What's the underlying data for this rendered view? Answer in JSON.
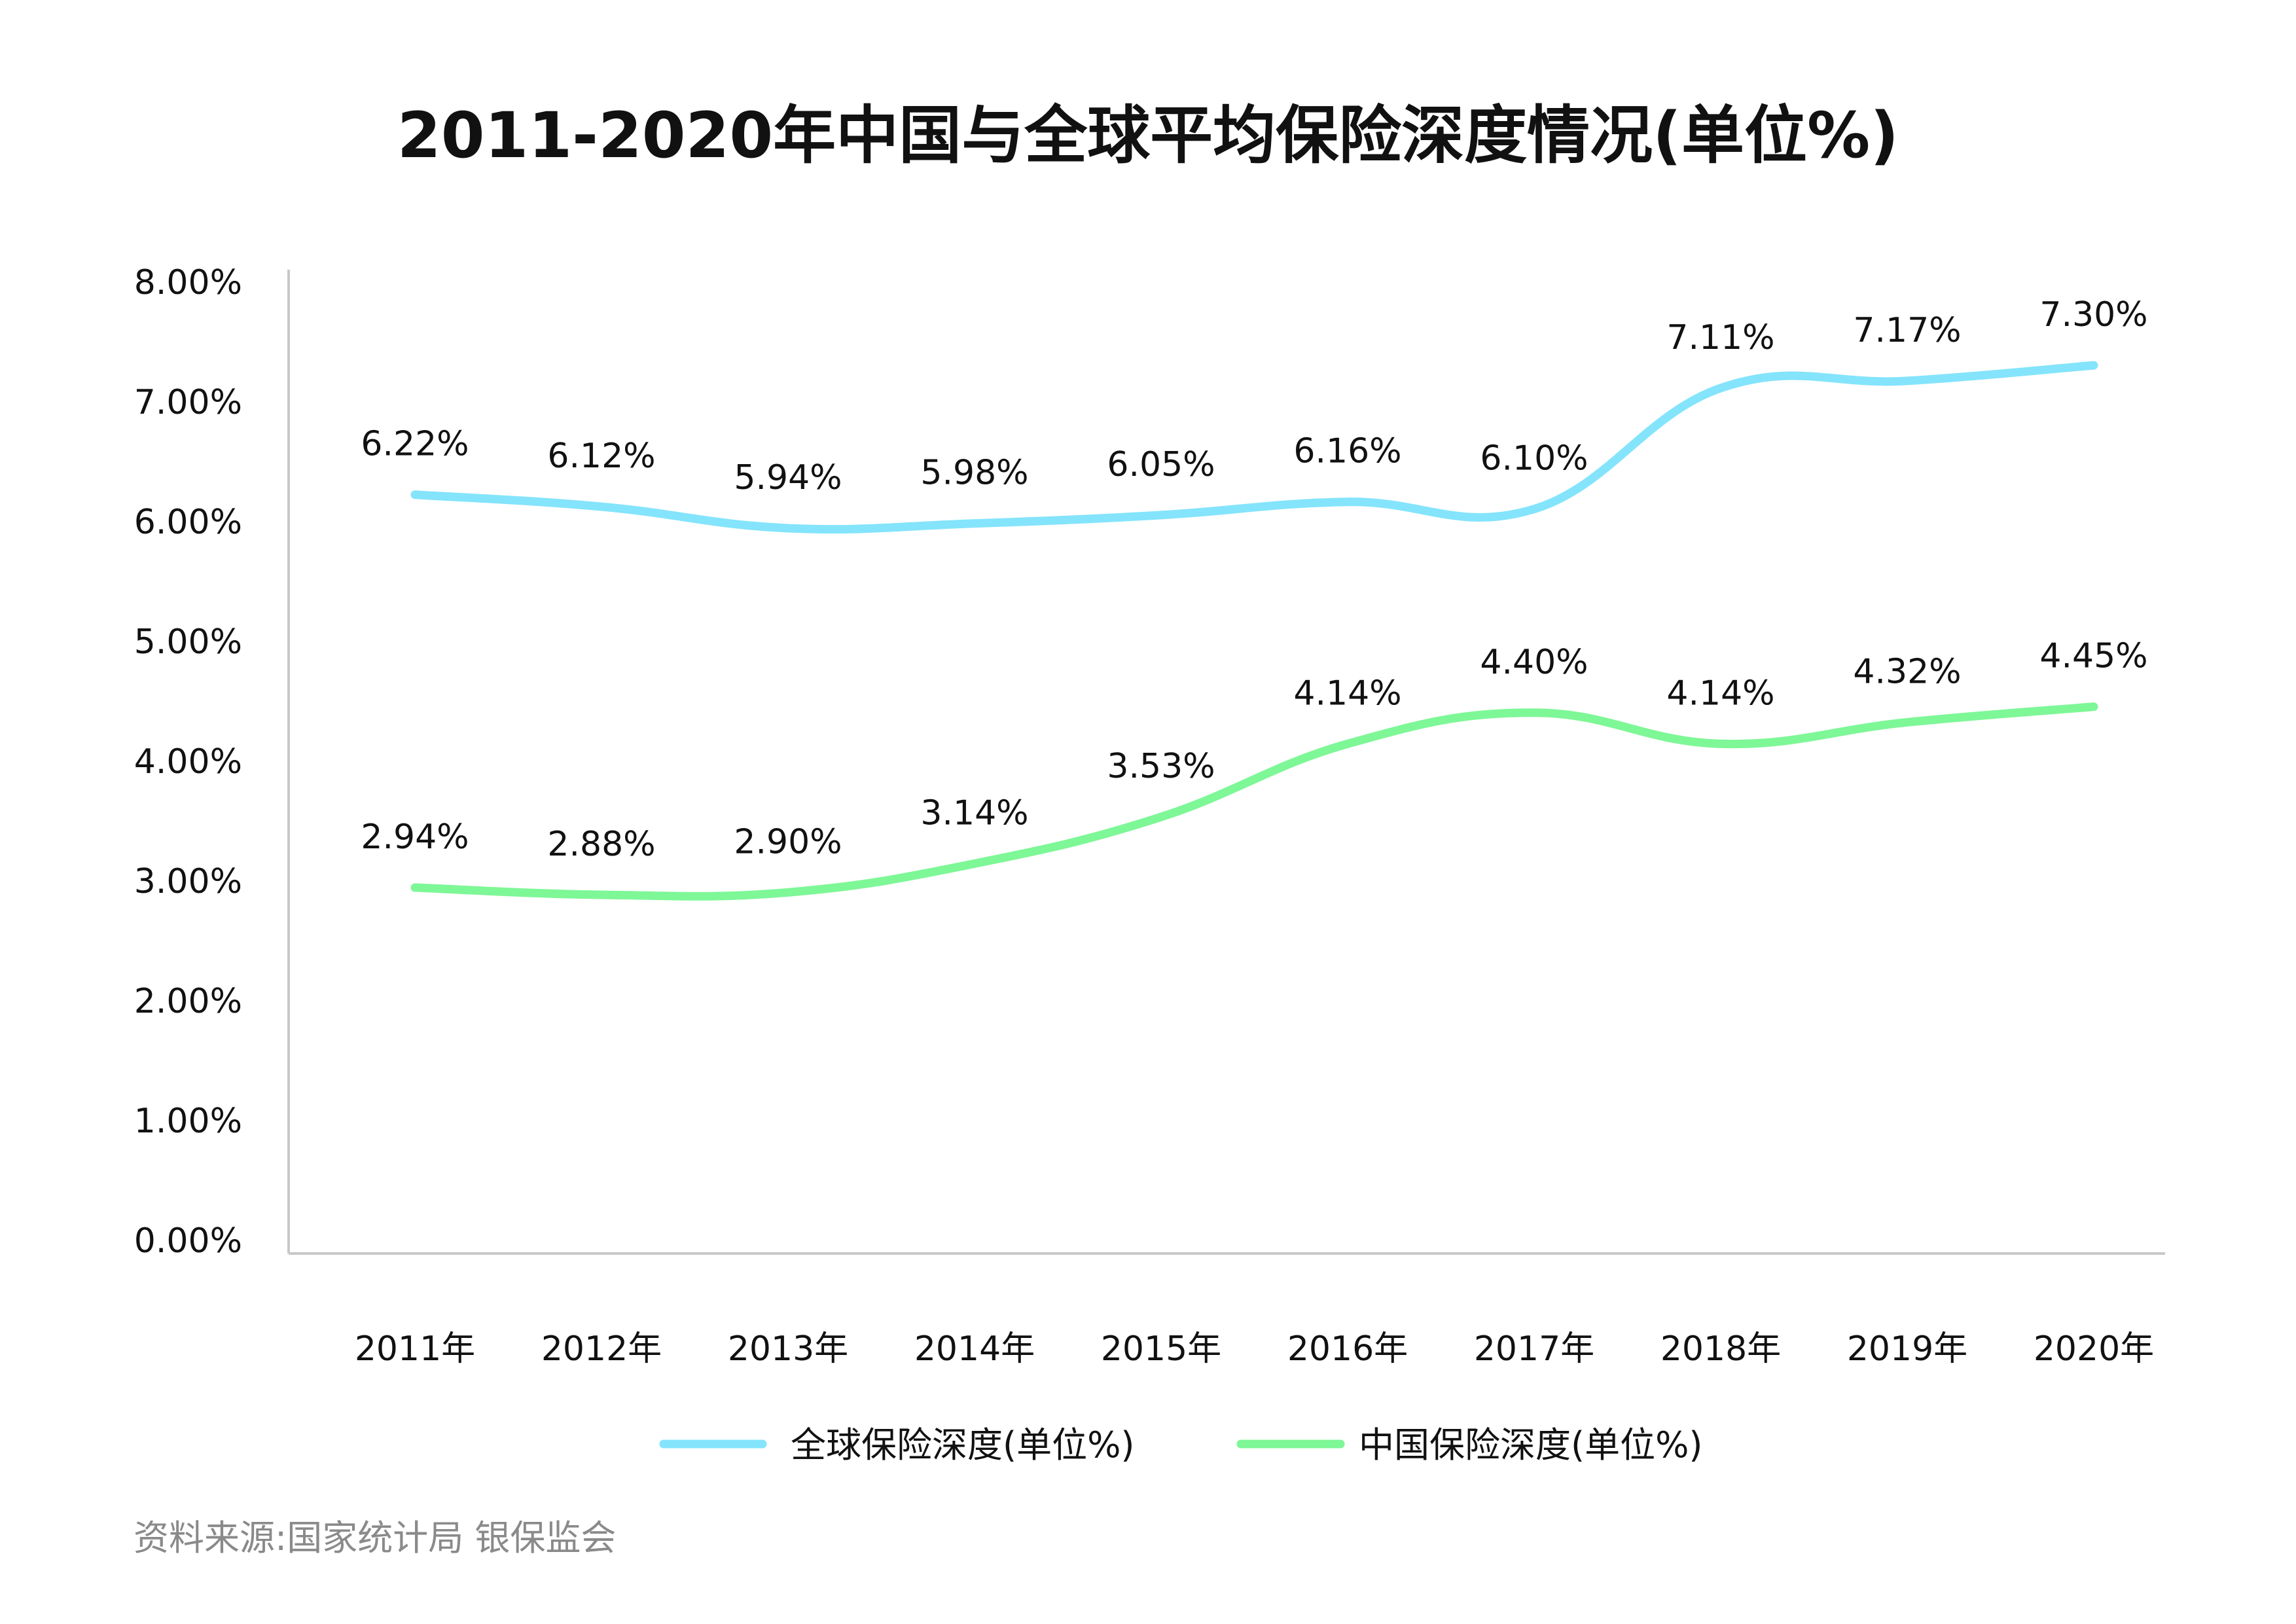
{
  "chart_data": {
    "type": "line",
    "title": "2011-2020年中国与全球平均保险深度情况(单位%)",
    "categories": [
      "2011年",
      "2012年",
      "2013年",
      "2014年",
      "2015年",
      "2016年",
      "2017年",
      "2018年",
      "2019年",
      "2020年"
    ],
    "series": [
      {
        "name": "全球保险深度(单位%)",
        "color": "#84E4FC",
        "values": [
          6.22,
          6.12,
          5.94,
          5.98,
          6.05,
          6.16,
          6.1,
          7.11,
          7.17,
          7.3
        ],
        "labels": [
          "6.22%",
          "6.12%",
          "5.94%",
          "5.98%",
          "6.05%",
          "6.16%",
          "6.10%",
          "7.11%",
          "7.17%",
          "7.30%"
        ]
      },
      {
        "name": "中国保险深度(单位%)",
        "color": "#7EF797",
        "values": [
          2.94,
          2.88,
          2.9,
          3.14,
          3.53,
          4.14,
          4.4,
          4.14,
          4.32,
          4.45
        ],
        "labels": [
          "2.94%",
          "2.88%",
          "2.90%",
          "3.14%",
          "3.53%",
          "4.14%",
          "4.40%",
          "4.14%",
          "4.32%",
          "4.45%"
        ]
      }
    ],
    "ylim": [
      0,
      8
    ],
    "yticks": [
      "0.00%",
      "1.00%",
      "2.00%",
      "3.00%",
      "4.00%",
      "5.00%",
      "6.00%",
      "7.00%",
      "8.00%"
    ],
    "smooth": true,
    "grid": false,
    "legend": "bottom",
    "source": "资料来源:国家统计局 银保监会"
  }
}
